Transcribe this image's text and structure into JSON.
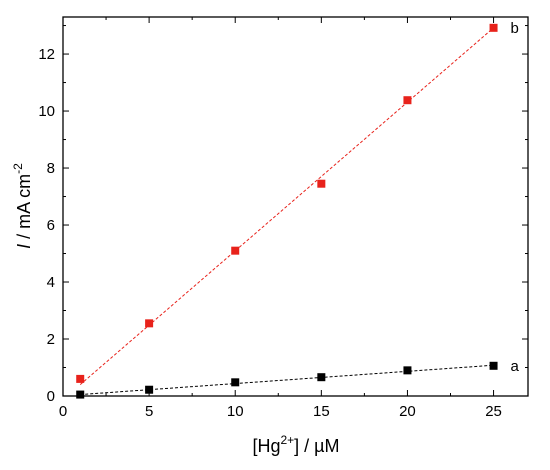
{
  "chart_data": {
    "type": "scatter",
    "xlim": [
      0,
      27
    ],
    "ylim": [
      0,
      13.3
    ],
    "x_ticks": [
      0,
      5,
      10,
      15,
      20,
      25
    ],
    "y_ticks": [
      0,
      2,
      4,
      6,
      8,
      10,
      12
    ],
    "grid": false,
    "legend": "none",
    "series": [
      {
        "name": "a",
        "color": "#000000",
        "x": [
          1,
          5,
          10,
          15,
          20,
          25
        ],
        "y": [
          0.05,
          0.22,
          0.48,
          0.66,
          0.9,
          1.06
        ],
        "fit": {
          "x": [
            1,
            25
          ],
          "y": [
            0.05,
            1.08
          ]
        }
      },
      {
        "name": "b",
        "color": "#e8221b",
        "x": [
          1,
          5,
          10,
          15,
          20,
          25
        ],
        "y": [
          0.6,
          2.55,
          5.1,
          7.45,
          10.38,
          12.92
        ],
        "fit": {
          "x": [
            1,
            25
          ],
          "y": [
            0.4,
            12.92
          ]
        }
      }
    ]
  }
}
